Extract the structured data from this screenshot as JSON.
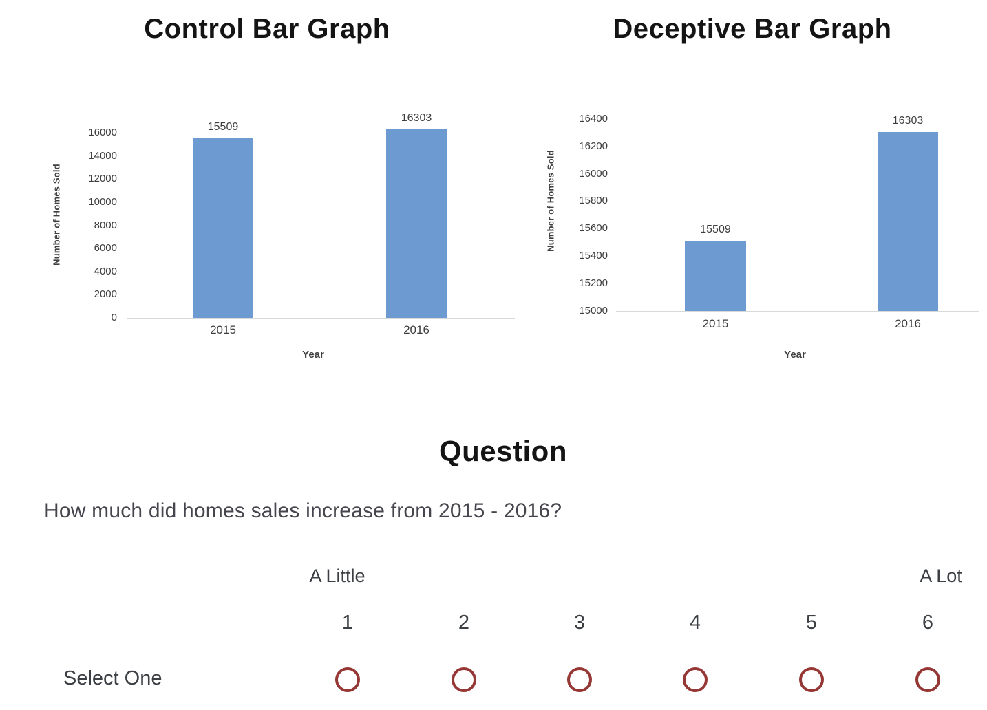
{
  "page": {
    "background": "#ffffff"
  },
  "chart_data": [
    {
      "type": "bar",
      "title": "Control Bar Graph",
      "ylabel": "Number of Homes Sold",
      "xlabel": "Year",
      "categories": [
        "2015",
        "2016"
      ],
      "values": [
        15509,
        16303
      ],
      "bar_labels": [
        "15509",
        "16303"
      ],
      "yticks": [
        0,
        2000,
        4000,
        6000,
        8000,
        10000,
        12000,
        14000,
        16000
      ],
      "ymin": 0,
      "ymax_tick": 16000,
      "grid": "off",
      "legend": "none",
      "bar_color": "#6c9ad1",
      "axis_line_color": "#d9d9d9"
    },
    {
      "type": "bar",
      "title": "Deceptive Bar Graph",
      "ylabel": "Number of Homes Sold",
      "xlabel": "Year",
      "categories": [
        "2015",
        "2016"
      ],
      "values": [
        15509,
        16303
      ],
      "bar_labels": [
        "15509",
        "16303"
      ],
      "yticks": [
        15000,
        15200,
        15400,
        15600,
        15800,
        16000,
        16200,
        16400
      ],
      "ymin": 15000,
      "ymax_tick": 16400,
      "grid": "off",
      "legend": "none",
      "bar_color": "#6c9ad1",
      "axis_line_color": "#d9d9d9"
    }
  ],
  "question": {
    "heading": "Question",
    "text": "How much did homes sales increase from 2015 - 2016?"
  },
  "scale": {
    "left_label": "A Little",
    "right_label": "A Lot",
    "options": [
      "1",
      "2",
      "3",
      "4",
      "5",
      "6"
    ],
    "select_label": "Select One",
    "radio_color": "#953735"
  }
}
